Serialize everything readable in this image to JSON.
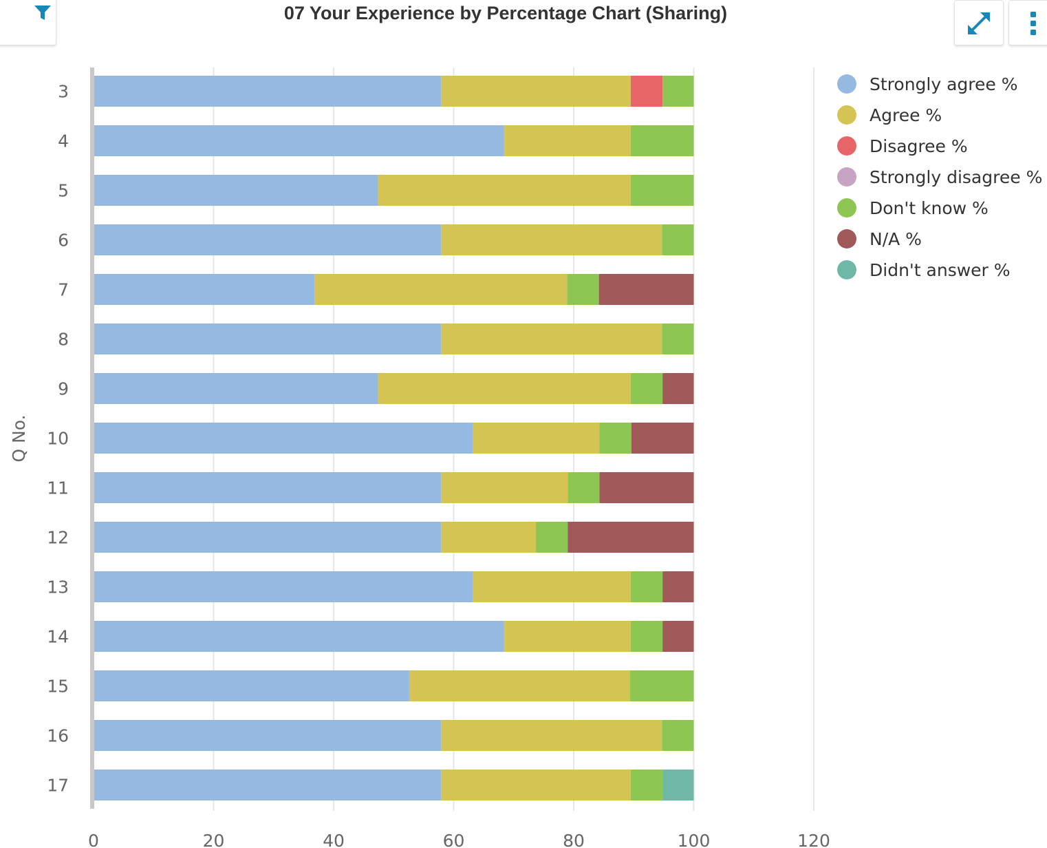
{
  "header": {
    "title": "07 Your Experience by Percentage Chart (Sharing)",
    "icons": {
      "filter": "filter-icon",
      "expand": "expand-icon",
      "menu": "more-vertical-icon"
    },
    "accent_color": "#1787b8"
  },
  "chart_data": {
    "type": "bar",
    "orientation": "horizontal",
    "stacked": true,
    "ylabel": "Q No.",
    "xlabel": "",
    "xlim": [
      0,
      120
    ],
    "xticks": [
      0,
      20,
      40,
      60,
      80,
      100,
      120
    ],
    "grid": true,
    "legend_position": "right",
    "categories": [
      "3",
      "4",
      "5",
      "6",
      "7",
      "8",
      "9",
      "10",
      "11",
      "12",
      "13",
      "14",
      "15",
      "16",
      "17"
    ],
    "series": [
      {
        "name": "Strongly agree %",
        "color": "#95b9e0",
        "values": [
          57.9,
          68.4,
          47.4,
          57.9,
          36.8,
          57.9,
          47.4,
          63.2,
          57.9,
          57.9,
          63.2,
          68.4,
          52.6,
          57.9,
          57.9
        ]
      },
      {
        "name": "Agree %",
        "color": "#d4c453",
        "values": [
          31.6,
          21.1,
          42.1,
          36.8,
          42.1,
          36.8,
          42.1,
          21.1,
          21.1,
          15.8,
          26.3,
          21.1,
          36.8,
          36.8,
          31.6
        ]
      },
      {
        "name": "Disagree %",
        "color": "#e86567",
        "values": [
          5.3,
          0,
          0,
          0,
          0,
          0,
          0,
          0,
          0,
          0,
          0,
          0,
          0,
          0,
          0
        ]
      },
      {
        "name": "Strongly disagree %",
        "color": "#c7a4c4",
        "values": [
          0,
          0,
          0,
          0,
          0,
          0,
          0,
          0,
          0,
          0,
          0,
          0,
          0,
          0,
          0
        ]
      },
      {
        "name": "Don't know %",
        "color": "#8ec653",
        "values": [
          5.2,
          10.5,
          10.5,
          5.3,
          5.3,
          5.3,
          5.3,
          5.3,
          5.3,
          5.3,
          5.3,
          5.3,
          10.6,
          5.3,
          5.3
        ]
      },
      {
        "name": "N/A %",
        "color": "#a15858",
        "values": [
          0,
          0,
          0,
          0,
          15.8,
          0,
          5.2,
          10.4,
          15.7,
          21.0,
          5.2,
          5.2,
          0,
          0,
          0
        ]
      },
      {
        "name": "Didn't answer %",
        "color": "#6fb8a8",
        "values": [
          0,
          0,
          0,
          0,
          0,
          0,
          0,
          0,
          0,
          0,
          0,
          0,
          0,
          0,
          5.2
        ]
      }
    ]
  }
}
